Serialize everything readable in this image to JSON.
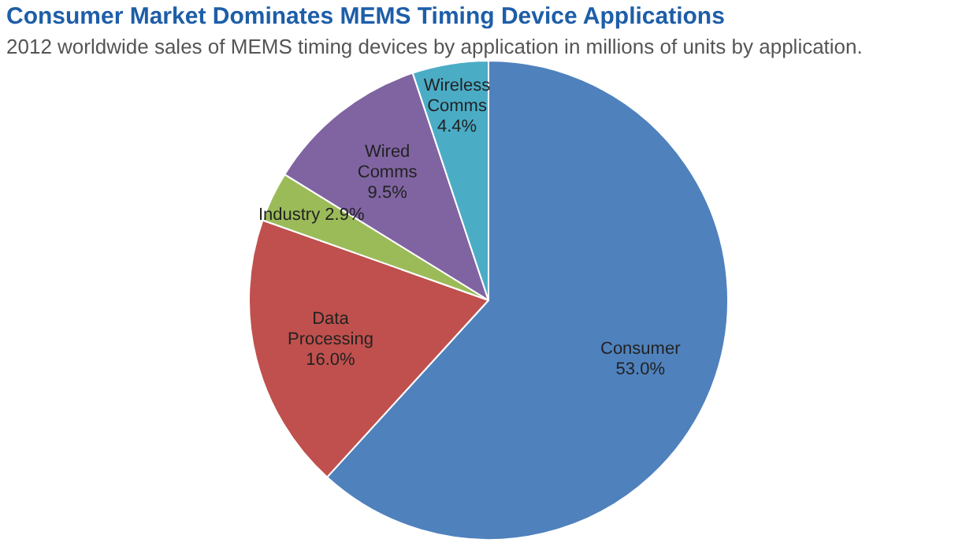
{
  "chart_data": {
    "type": "pie",
    "title": "Consumer Market Dominates MEMS Timing Device Applications",
    "subtitle": "2012 worldwide sales of MEMS timing devices by application in millions of units by application.",
    "categories": [
      "Consumer",
      "Data Processing",
      "Industry",
      "Wired Comms",
      "Wireless Comms"
    ],
    "values": [
      53.0,
      16.0,
      2.9,
      9.5,
      4.4
    ],
    "value_labels": [
      "53.0%",
      "16.0%",
      "2.9%",
      "9.5%",
      "4.4%"
    ],
    "colors": [
      "#4f81bd",
      "#c0504d",
      "#9bbb59",
      "#8064a2",
      "#4bacc6"
    ],
    "legend": false
  }
}
